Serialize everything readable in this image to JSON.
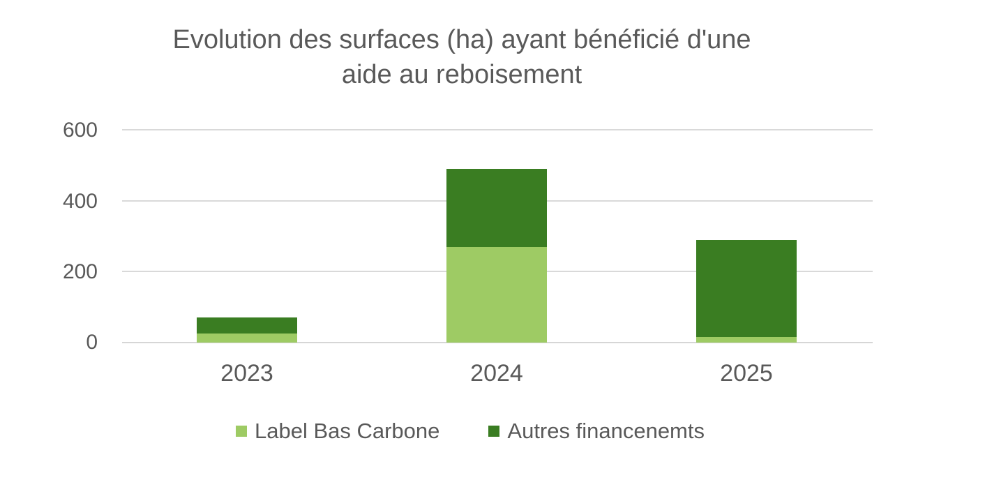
{
  "chart_data": {
    "type": "bar",
    "stacked": true,
    "title": "Evolution des surfaces (ha) ayant bénéficié d'une aide au reboisement",
    "title_lines": [
      "Evolution des surfaces (ha) ayant bénéficié d'une",
      "aide au reboisement"
    ],
    "categories": [
      "2023",
      "2024",
      "2025"
    ],
    "series": [
      {
        "name": "Label Bas Carbone",
        "color": "#9ECB64",
        "values": [
          25,
          270,
          15
        ]
      },
      {
        "name": "Autres financenemts",
        "color": "#3A7D22",
        "values": [
          45,
          220,
          275
        ]
      }
    ],
    "totals": [
      70,
      490,
      290
    ],
    "xlabel": "",
    "ylabel": "",
    "ylim": [
      0,
      600
    ],
    "yticks": [
      0,
      200,
      400,
      600
    ],
    "grid": true,
    "gridline_color": "#d9d9d9",
    "text_color": "#595959",
    "legend_position": "bottom"
  }
}
